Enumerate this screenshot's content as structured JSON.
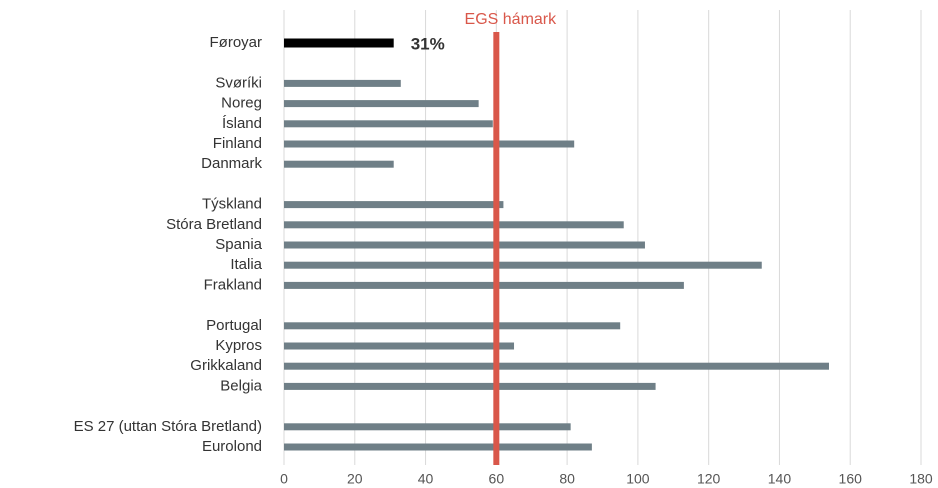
{
  "chart_data": {
    "type": "bar",
    "orientation": "horizontal",
    "categories": [
      "Føroyar",
      null,
      "Svøríki",
      "Noreg",
      "Ísland",
      "Finland",
      "Danmark",
      null,
      "Týskland",
      "Stóra Bretland",
      "Spania",
      "Italia",
      "Frakland",
      null,
      "Portugal",
      "Kypros",
      "Grikkaland",
      "Belgia",
      null,
      "ES 27 (uttan Stóra Bretland)",
      "Eurolond"
    ],
    "values": [
      31,
      null,
      33,
      55,
      59,
      82,
      31,
      null,
      62,
      96,
      102,
      135,
      113,
      null,
      95,
      65,
      154,
      105,
      null,
      81,
      87
    ],
    "value_labels": [
      "31%",
      null,
      null,
      null,
      null,
      null,
      null,
      null,
      null,
      null,
      null,
      null,
      null,
      null,
      null,
      null,
      null,
      null,
      null,
      null,
      null
    ],
    "colors": [
      "#000000",
      null,
      "#6f7f87",
      "#6f7f87",
      "#6f7f87",
      "#6f7f87",
      "#6f7f87",
      null,
      "#6f7f87",
      "#6f7f87",
      "#6f7f87",
      "#6f7f87",
      "#6f7f87",
      null,
      "#6f7f87",
      "#6f7f87",
      "#6f7f87",
      "#6f7f87",
      null,
      "#6f7f87",
      "#6f7f87"
    ],
    "xlim": [
      0,
      180
    ],
    "xticks": [
      0,
      20,
      40,
      60,
      80,
      100,
      120,
      140,
      160,
      180
    ],
    "grid": true,
    "reference_line": {
      "value": 60,
      "label": "EGS hámark",
      "color": "#d9574a"
    }
  }
}
